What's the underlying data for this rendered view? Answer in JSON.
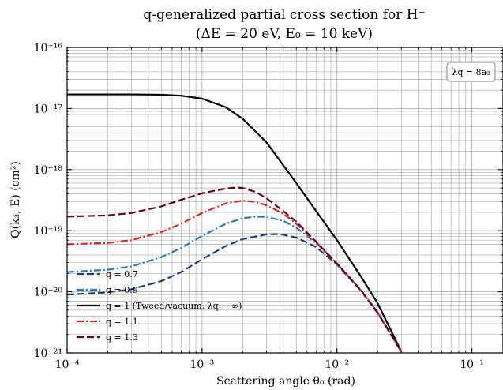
{
  "chart_data": {
    "type": "line",
    "title": [
      "q-generalized partial cross section for H⁻",
      "(ΔE = 20 eV, E₀ = 10 keV)"
    ],
    "xlabel": "Scattering angle θ₀ (rad)",
    "ylabel": "Q(k₃, E) (cm²)",
    "xscale": "log",
    "yscale": "log",
    "xlim": [
      0.0001,
      0.17
    ],
    "ylim": [
      1e-21,
      1e-16
    ],
    "grid": "major and minor",
    "x_tick_labels": [
      "10⁻⁴",
      "10⁻³",
      "10⁻²",
      "10⁻¹"
    ],
    "y_tick_labels": [
      "10⁻²¹",
      "10⁻²⁰",
      "10⁻¹⁹",
      "10⁻¹⁸",
      "10⁻¹⁷",
      "10⁻¹⁶"
    ],
    "legend_position": "lower-left",
    "annotation": "λq = 8a₀",
    "annotation_position": "top-right",
    "series": [
      {
        "name": "q = 0.7",
        "color": "#1f3d7a",
        "style": "dashed",
        "x": [
          0.0001,
          0.0002,
          0.0003,
          0.0005,
          0.0007,
          0.001,
          0.0015,
          0.002,
          0.003,
          0.0035,
          0.004,
          0.005,
          0.007,
          0.01,
          0.015,
          0.02,
          0.03
        ],
        "y": [
          9e-21,
          9.8e-21,
          1.1e-20,
          1.5e-20,
          2.1e-20,
          3.4e-20,
          5.6e-20,
          7.3e-20,
          8.7e-20,
          8.8e-20,
          8.6e-20,
          7.7e-20,
          5.4e-20,
          2.8e-20,
          1.05e-20,
          4.5e-21,
          1.05e-21
        ]
      },
      {
        "name": "q = 0.9",
        "color": "#2a78b8",
        "style": "dashdot",
        "x": [
          0.0001,
          0.0002,
          0.0003,
          0.0005,
          0.0007,
          0.001,
          0.0015,
          0.002,
          0.0025,
          0.003,
          0.004,
          0.005,
          0.007,
          0.01,
          0.015,
          0.02,
          0.03
        ],
        "y": [
          2.1e-20,
          2.3e-20,
          2.6e-20,
          3.7e-20,
          5.2e-20,
          8.2e-20,
          1.3e-19,
          1.6e-19,
          1.7e-19,
          1.68e-19,
          1.45e-19,
          1.12e-19,
          6.3e-20,
          2.9e-20,
          1.07e-20,
          4.6e-21,
          1.05e-21
        ]
      },
      {
        "name": "q = 1 (Tweed/vacuum, λq → ∞)",
        "color": "#000000",
        "style": "solid",
        "x": [
          0.0001,
          0.0003,
          0.0005,
          0.0007,
          0.001,
          0.0015,
          0.002,
          0.003,
          0.005,
          0.007,
          0.01,
          0.015,
          0.02,
          0.03
        ],
        "y": [
          1.7e-17,
          1.7e-17,
          1.68e-17,
          1.62e-17,
          1.45e-17,
          1.05e-17,
          6.8e-18,
          2.8e-18,
          6e-19,
          2.1e-19,
          7e-20,
          1.8e-20,
          6.5e-21,
          1.05e-21
        ]
      },
      {
        "name": "q = 1.1",
        "color": "#d42a2a",
        "style": "dashdot",
        "x": [
          0.0001,
          0.0002,
          0.0003,
          0.0005,
          0.0007,
          0.001,
          0.0015,
          0.002,
          0.0025,
          0.003,
          0.004,
          0.005,
          0.007,
          0.01,
          0.015,
          0.02,
          0.03
        ],
        "y": [
          6e-20,
          6.3e-20,
          7e-20,
          9.5e-20,
          1.3e-19,
          1.95e-19,
          2.8e-19,
          3.1e-19,
          2.95e-19,
          2.6e-19,
          1.9e-19,
          1.3e-19,
          6.5e-20,
          2.9e-20,
          1.07e-20,
          4.6e-21,
          1.05e-21
        ]
      },
      {
        "name": "q = 1.3",
        "color": "#6e0010",
        "style": "dashed",
        "x": [
          0.0001,
          0.0002,
          0.0003,
          0.0005,
          0.0007,
          0.001,
          0.0015,
          0.0018,
          0.002,
          0.0025,
          0.003,
          0.004,
          0.005,
          0.007,
          0.01,
          0.015,
          0.02,
          0.03
        ],
        "y": [
          1.7e-19,
          1.78e-19,
          1.95e-19,
          2.5e-19,
          3.2e-19,
          4.1e-19,
          4.9e-19,
          5.1e-19,
          5e-19,
          4.3e-19,
          3.4e-19,
          2.1e-19,
          1.4e-19,
          6.6e-20,
          2.9e-20,
          1.07e-20,
          4.6e-21,
          1.05e-21
        ]
      }
    ]
  }
}
